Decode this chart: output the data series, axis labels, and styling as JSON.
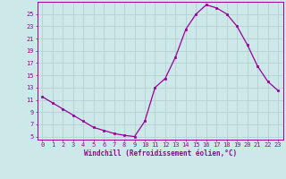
{
  "x": [
    0,
    1,
    2,
    3,
    4,
    5,
    6,
    7,
    8,
    9,
    10,
    11,
    12,
    13,
    14,
    15,
    16,
    17,
    18,
    19,
    20,
    21,
    22,
    23
  ],
  "y": [
    11.5,
    10.5,
    9.5,
    8.5,
    7.5,
    6.5,
    6.0,
    5.5,
    5.2,
    5.0,
    7.5,
    13.0,
    14.5,
    18.0,
    22.5,
    25.0,
    26.5,
    26.0,
    25.0,
    23.0,
    20.0,
    16.5,
    14.0,
    12.5
  ],
  "line_color": "#990099",
  "marker": "s",
  "markersize": 2.0,
  "linewidth": 0.9,
  "xlabel": "Windchill (Refroidissement éolien,°C)",
  "ylabel_ticks": [
    5,
    7,
    9,
    11,
    13,
    15,
    17,
    19,
    21,
    23,
    25
  ],
  "ylim": [
    4.5,
    27.0
  ],
  "xlim": [
    -0.5,
    23.5
  ],
  "xticks": [
    0,
    1,
    2,
    3,
    4,
    5,
    6,
    7,
    8,
    9,
    10,
    11,
    12,
    13,
    14,
    15,
    16,
    17,
    18,
    19,
    20,
    21,
    22,
    23
  ],
  "bg_color": "#cde8e8",
  "grid_color": "#b0cccc",
  "xlabel_color": "#990099",
  "tick_color": "#990099",
  "spine_color": "#990099",
  "tick_fontsize": 5.0,
  "xlabel_fontsize": 5.5
}
